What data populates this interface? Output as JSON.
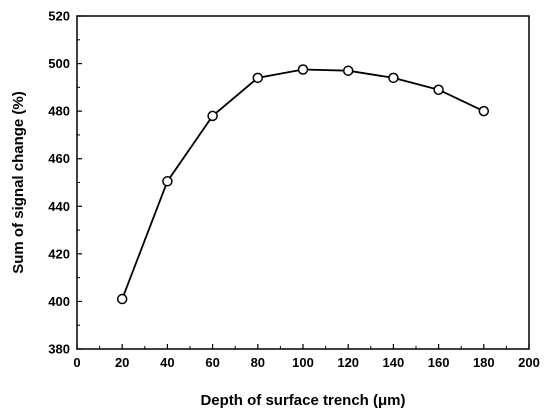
{
  "chart_data": {
    "type": "line",
    "title": "",
    "xlabel": "Depth of surface trench (μm)",
    "ylabel": "Sum of signal change (%)",
    "xlim": [
      0,
      200
    ],
    "ylim": [
      380,
      520
    ],
    "x_ticks": [
      0,
      20,
      40,
      60,
      80,
      100,
      120,
      140,
      160,
      180,
      200
    ],
    "y_ticks": [
      380,
      400,
      420,
      440,
      460,
      480,
      500,
      520
    ],
    "grid": false,
    "markers": "open-circle",
    "line_color": "#000000",
    "series": [
      {
        "x": [
          20,
          40,
          60,
          80,
          100,
          120,
          140,
          160,
          180
        ],
        "values": [
          401,
          450.5,
          478,
          494,
          497.5,
          497,
          494,
          489,
          480
        ]
      }
    ]
  }
}
